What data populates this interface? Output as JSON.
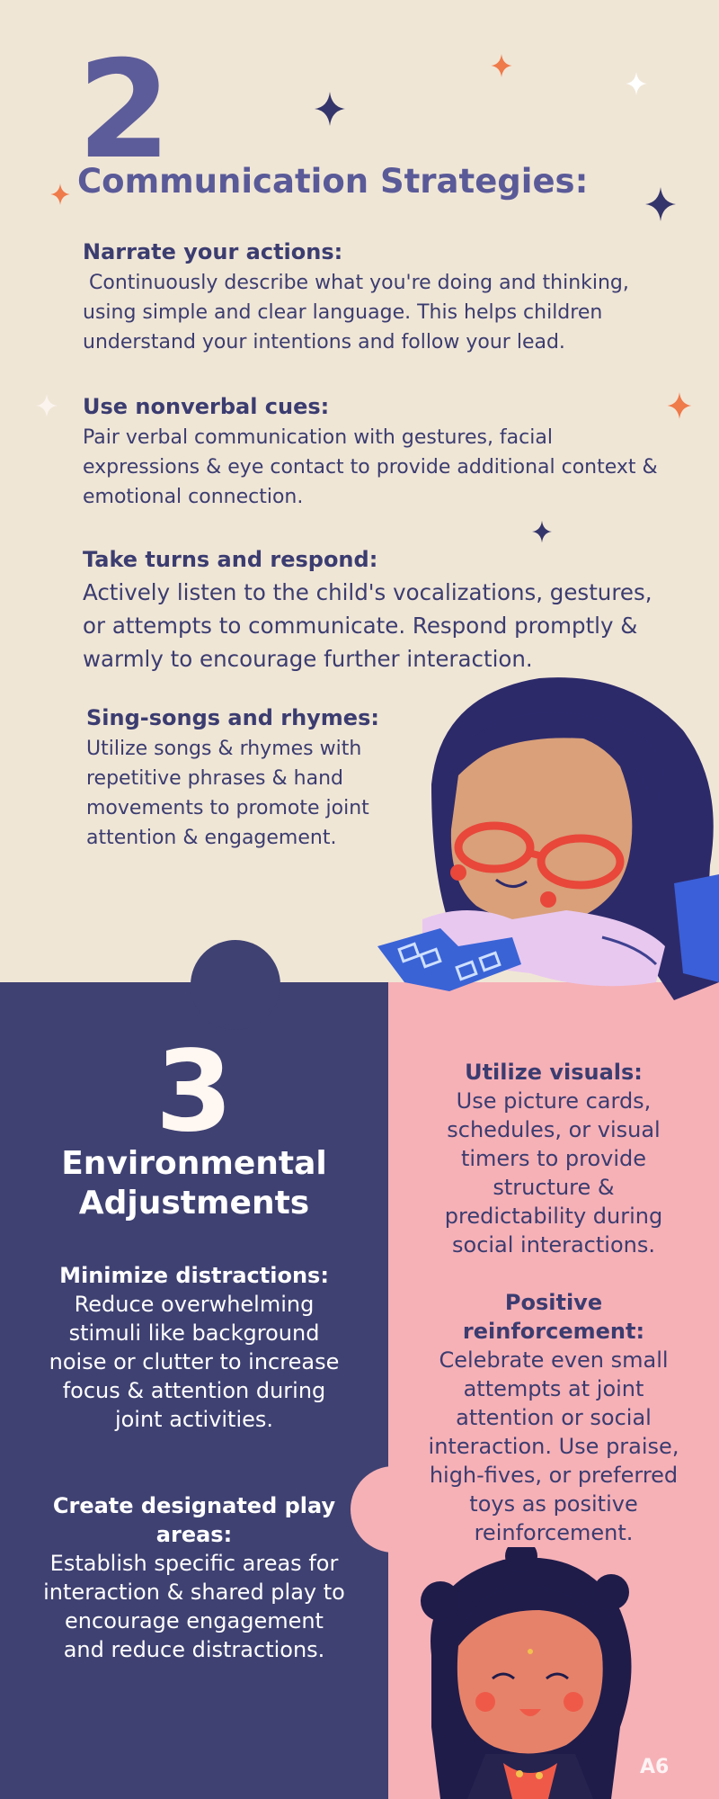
{
  "section2": {
    "number": "2",
    "title": "Communication Strategies:",
    "items": [
      {
        "title": "Narrate your actions:",
        "text": " Continuously describe what you're doing and thinking, using simple and clear language. This helps children understand your intentions and follow your lead."
      },
      {
        "title": "Use nonverbal cues:",
        "text": "Pair verbal communication with gestures, facial expressions & eye contact to provide additional context & emotional connection."
      },
      {
        "title": "Take turns and respond:",
        "text": "Actively listen to the child's vocalizations, gestures, or attempts to communicate. Respond promptly & warmly to encourage further interaction."
      },
      {
        "title": "Sing-songs and rhymes:",
        "text": "Utilize songs & rhymes with repetitive phrases & hand movements to promote joint attention & engagement."
      }
    ]
  },
  "section3": {
    "number": "3",
    "title": "Environmental Adjustments",
    "left_items": [
      {
        "title": "Minimize distractions:",
        "text": "Reduce overwhelming stimuli like background noise or clutter to increase focus & attention during joint activities."
      },
      {
        "title": "Create designated play areas:",
        "text": "Establish specific areas for interaction & shared play to encourage engagement and reduce distractions."
      }
    ],
    "right_items": [
      {
        "title": "Utilize visuals:",
        "text": "Use picture cards, schedules, or visual timers to provide structure & predictability during social interactions."
      },
      {
        "title": "Positive reinforcement:",
        "text": "Celebrate even small attempts at joint attention or social interaction. Use praise, high-fives, or preferred toys as positive reinforcement."
      }
    ]
  },
  "page_label": "A6",
  "colors": {
    "cream": "#f0e6d6",
    "navy": "#3f4172",
    "pink": "#f6b1b7",
    "text_dark": "#3b3c70",
    "orange_star": "#ef7a4a"
  }
}
